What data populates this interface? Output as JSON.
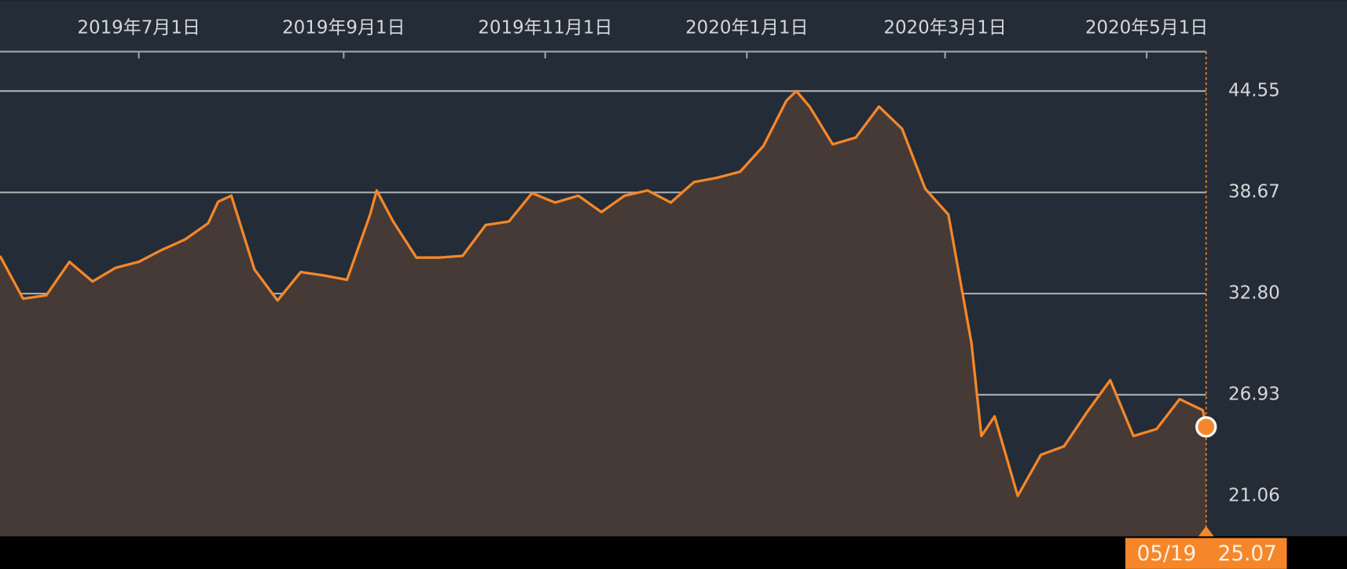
{
  "chart_data": {
    "type": "line",
    "cursor_label": "05/19",
    "xlim": [
      "2019-05-20",
      "2020-05-19"
    ],
    "xticks": [
      {
        "value": "2019-07-01",
        "label": "2019年7月1日"
      },
      {
        "value": "2019-09-01",
        "label": "2019年9月1日"
      },
      {
        "value": "2019-11-01",
        "label": "2019年11月1日"
      },
      {
        "value": "2020-01-01",
        "label": "2020年1月1日"
      },
      {
        "value": "2020-03-01",
        "label": "2020年3月1日"
      },
      {
        "value": "2020-05-01",
        "label": "2020年5月1日"
      }
    ],
    "ylim": [
      18.72,
      46.84
    ],
    "yticks": [
      21.06,
      26.93,
      {
        "value": 32.8,
        "label": "32.80"
      },
      38.67,
      44.55
    ],
    "grid": true,
    "color": "#f5872a",
    "x": [
      "2019-05-20",
      "2019-05-27",
      "2019-06-03",
      "2019-06-10",
      "2019-06-17",
      "2019-06-24",
      "2019-07-01",
      "2019-07-08",
      "2019-07-15",
      "2019-07-22",
      "2019-07-25",
      "2019-07-29",
      "2019-08-05",
      "2019-08-12",
      "2019-08-19",
      "2019-08-26",
      "2019-09-02",
      "2019-09-09",
      "2019-09-11",
      "2019-09-16",
      "2019-09-23",
      "2019-09-30",
      "2019-10-07",
      "2019-10-14",
      "2019-10-21",
      "2019-10-28",
      "2019-11-04",
      "2019-11-11",
      "2019-11-18",
      "2019-11-25",
      "2019-12-02",
      "2019-12-09",
      "2019-12-16",
      "2019-12-23",
      "2019-12-30",
      "2020-01-06",
      "2020-01-13",
      "2020-01-16",
      "2020-01-20",
      "2020-01-27",
      "2020-02-03",
      "2020-02-10",
      "2020-02-17",
      "2020-02-24",
      "2020-03-02",
      "2020-03-09",
      "2020-03-12",
      "2020-03-16",
      "2020-03-23",
      "2020-03-30",
      "2020-04-06",
      "2020-04-13",
      "2020-04-20",
      "2020-04-27",
      "2020-05-04",
      "2020-05-11",
      "2020-05-18",
      "2020-05-19"
    ],
    "values": [
      34.99,
      32.5,
      32.7,
      34.64,
      33.5,
      34.3,
      34.64,
      35.34,
      35.94,
      36.88,
      38.13,
      38.48,
      34.2,
      32.4,
      34.05,
      33.85,
      33.6,
      37.38,
      38.78,
      36.98,
      34.89,
      34.89,
      34.99,
      36.78,
      36.98,
      38.63,
      38.08,
      38.48,
      37.53,
      38.48,
      38.78,
      38.08,
      39.27,
      39.52,
      39.87,
      41.36,
      44.0,
      44.55,
      43.65,
      41.46,
      41.86,
      43.65,
      42.36,
      38.88,
      37.38,
      29.92,
      24.54,
      25.68,
      21.06,
      23.45,
      23.94,
      25.93,
      27.78,
      24.54,
      24.94,
      26.68,
      26.03,
      25.07
    ]
  }
}
